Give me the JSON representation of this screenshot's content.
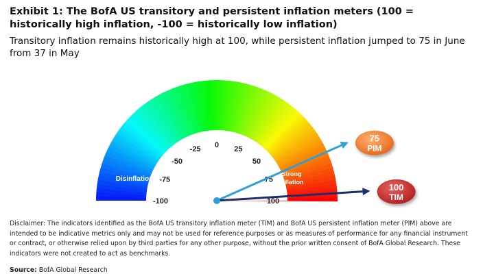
{
  "title": "Exhibit 1: The BofA US transitory and persistent inflation meters (100 = historically high inflation, -100 = historically low inflation)",
  "subtitle": "Transitory inflation remains historically high at 100, while persistent inflation jumped to 75 in June from 37 in May",
  "disclaimer": "Disclaimer: The indicators identified as the BofA US transitory inflation meter (TIM) and BofA US persistent  inflation meter (PIM) above are intended to be indicative metrics only and may not be used  for reference purposes or as measures of performance for any financial instrument or contract, or otherwise relied upon by third parties for any other purpose, without the prior written consent  of BofA Global Research. These indicators were not created to act as benchmarks.",
  "source_label": "Source:",
  "source_text": "BofA Global Research",
  "colors": {
    "pim_bubble": "#f07a2a",
    "tim_bubble": "#c0282a",
    "pim_arrow": "#2f9fd8",
    "tim_arrow": "#1f2d6b"
  },
  "chart_data": {
    "type": "gauge",
    "scale_min": -100,
    "scale_max": 100,
    "ticks": [
      -100,
      -75,
      -50,
      -25,
      0,
      25,
      50,
      75,
      100
    ],
    "zones": [
      {
        "label": "Disinflation"
      },
      {
        "label_line1": "Strong",
        "label_line2": "Inflation"
      }
    ],
    "series": [
      {
        "name": "PIM",
        "value": 75,
        "color": "#2f9fd8",
        "bubble_color": "#f07a2a"
      },
      {
        "name": "TIM",
        "value": 100,
        "color": "#1f2d6b",
        "bubble_color": "#c0282a"
      }
    ]
  }
}
